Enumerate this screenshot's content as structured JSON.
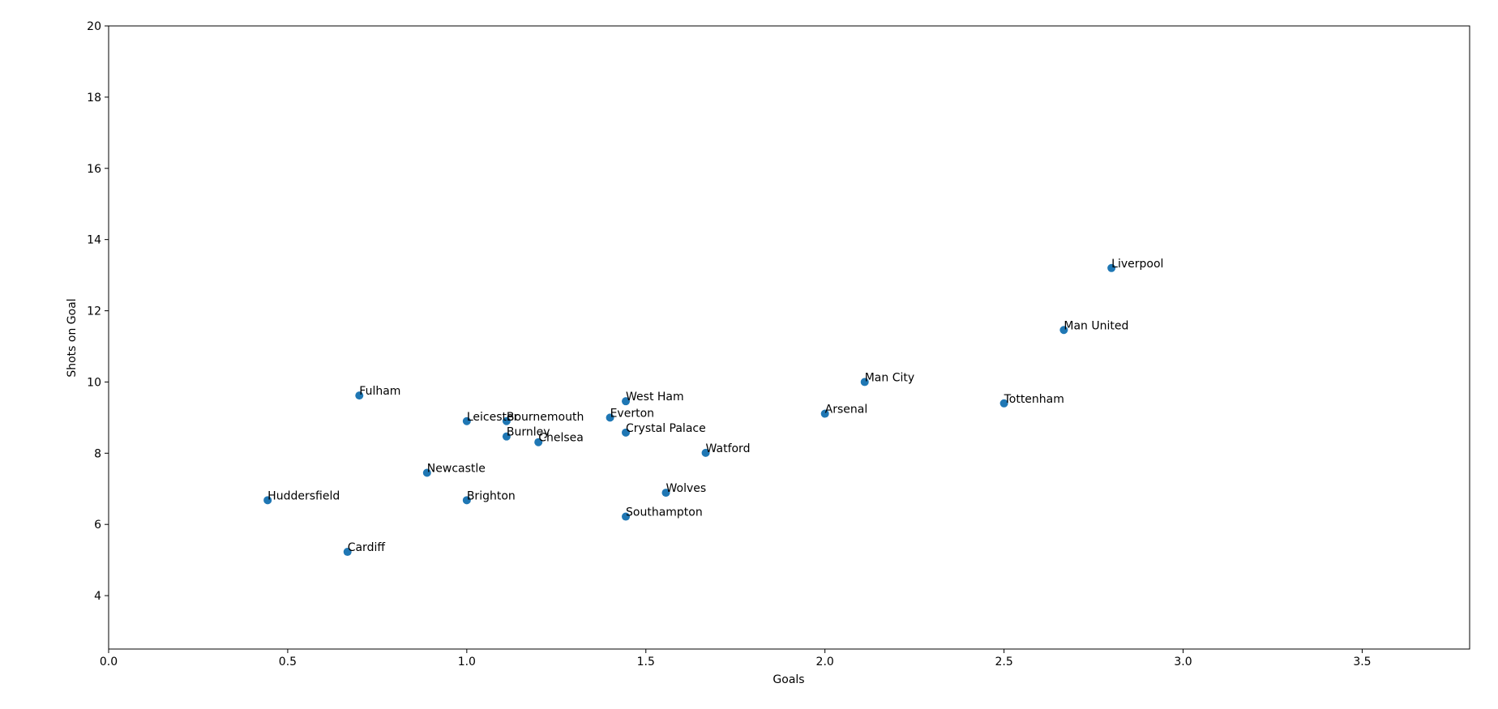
{
  "chart_data": {
    "type": "scatter",
    "x_label": "Goals",
    "y_label": "Shots on Goal",
    "labels": [
      "Liverpool",
      "Man United",
      "Man City",
      "Tottenham",
      "Arsenal",
      "Watford",
      "Wolves",
      "Southampton",
      "Crystal Palace",
      "West Ham",
      "Everton",
      "Chelsea",
      "Bournemouth",
      "Burnley",
      "Leicester",
      "Brighton",
      "Newcastle",
      "Fulham",
      "Cardiff",
      "Huddersfield"
    ],
    "x": [
      2.8,
      2.667,
      2.111,
      2.5,
      2.0,
      1.667,
      1.556,
      1.444,
      1.444,
      1.444,
      1.4,
      1.2,
      1.111,
      1.111,
      1.0,
      1.0,
      0.889,
      0.7,
      0.667,
      0.444
    ],
    "series": [
      {
        "color": "#1f77b4",
        "values": [
          13.2,
          11.46,
          10.0,
          9.4,
          9.11,
          8.01,
          6.89,
          6.22,
          8.58,
          9.46,
          9.0,
          8.31,
          8.9,
          8.47,
          8.9,
          6.68,
          7.45,
          9.62,
          5.23,
          6.68
        ]
      }
    ],
    "xlim": [
      0,
      3.8
    ],
    "ylim": [
      2.5,
      20
    ],
    "xticks": [
      {
        "value": 0,
        "label": "0.0"
      },
      0.5,
      {
        "value": 1,
        "label": "1.0"
      },
      1.5,
      {
        "value": 2,
        "label": "2.0"
      },
      2.5,
      {
        "value": 3,
        "label": "3.0"
      },
      3.5
    ],
    "yticks": [
      4,
      6,
      8,
      10,
      12,
      14,
      16,
      18,
      20
    ]
  }
}
